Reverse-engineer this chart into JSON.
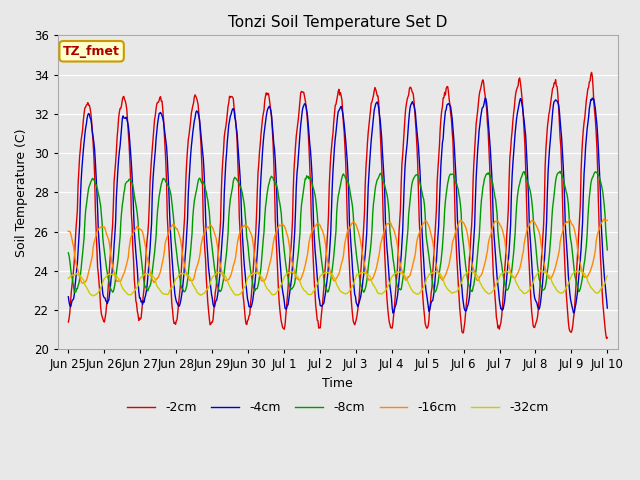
{
  "title": "Tonzi Soil Temperature Set D",
  "xlabel": "Time",
  "ylabel": "Soil Temperature (C)",
  "ylim": [
    20,
    36
  ],
  "annotation": "TZ_fmet",
  "annotation_color": "#aa0000",
  "annotation_bg": "#ffffcc",
  "annotation_border": "#cc9900",
  "fig_bg": "#e8e8e8",
  "plot_bg": "#e8e8e8",
  "grid_color": "#ffffff",
  "series": [
    {
      "label": "-2cm",
      "color": "#dd0000"
    },
    {
      "label": "-4cm",
      "color": "#0000cc"
    },
    {
      "label": "-8cm",
      "color": "#009900"
    },
    {
      "label": "-16cm",
      "color": "#ff8800"
    },
    {
      "label": "-32cm",
      "color": "#cccc00"
    }
  ],
  "tick_labels": [
    "Jun 25",
    "Jun 26",
    "Jun 27",
    "Jun 28",
    "Jun 29",
    "Jun 30",
    "Jul 1",
    "Jul 2",
    "Jul 3",
    "Jul 4",
    "Jul 5",
    "Jul 6",
    "Jul 7",
    "Jul 8",
    "Jul 9",
    "Jul 10"
  ],
  "tick_positions": [
    0,
    1,
    2,
    3,
    4,
    5,
    6,
    7,
    8,
    9,
    10,
    11,
    12,
    13,
    14,
    15
  ],
  "yticks": [
    20,
    22,
    24,
    26,
    28,
    30,
    32,
    34,
    36
  ],
  "lw": 1.0,
  "n_days": 15,
  "pts_per_day": 48,
  "base_temps": [
    27.0,
    26.8,
    25.8,
    24.8,
    23.3
  ],
  "amplitudes": [
    5.5,
    4.8,
    2.8,
    1.4,
    0.55
  ],
  "phase_lags": [
    0.0,
    0.07,
    0.2,
    0.42,
    0.7
  ],
  "amp_growth": [
    0.15,
    0.13,
    0.08,
    0.04,
    0.01
  ],
  "base_growth": [
    0.02,
    0.02,
    0.02,
    0.02,
    0.01
  ],
  "noise_scales": [
    0.25,
    0.18,
    0.12,
    0.08,
    0.04
  ],
  "seed": 17
}
